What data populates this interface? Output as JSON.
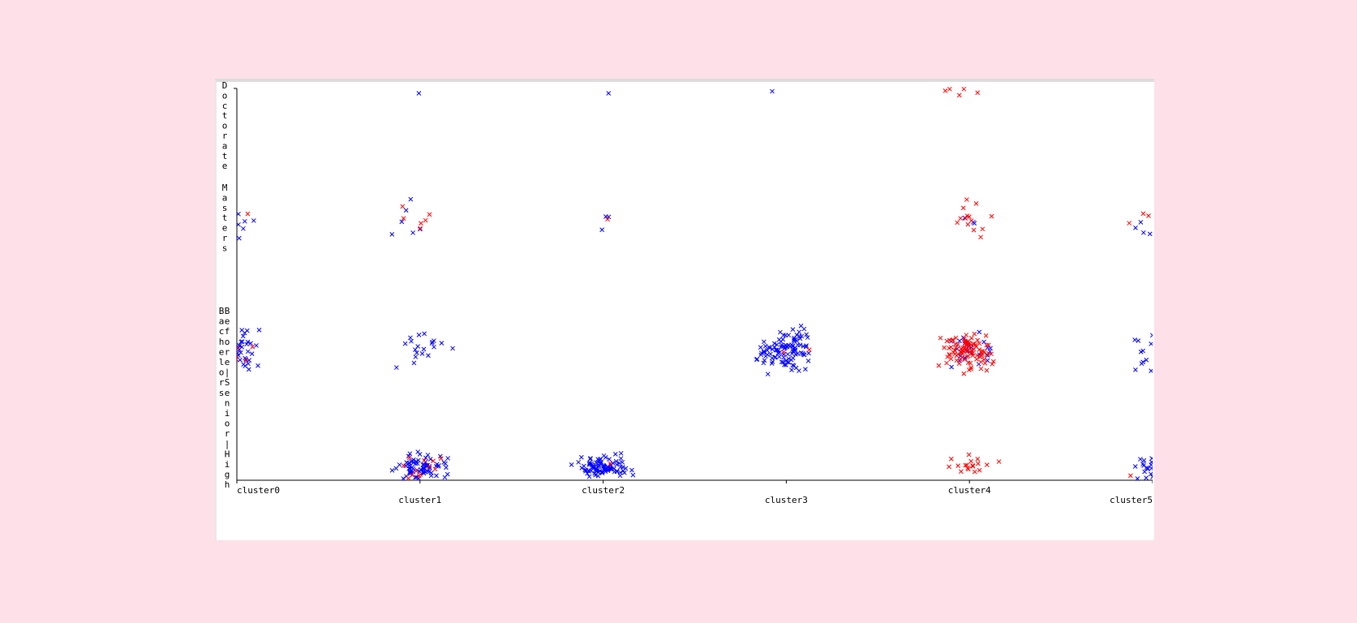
{
  "chart_data": {
    "type": "scatter",
    "jitter": true,
    "title": "",
    "xlabel": "",
    "ylabel": "",
    "x_categories": [
      "cluster0",
      "cluster1",
      "cluster2",
      "cluster3",
      "cluster4",
      "cluster5"
    ],
    "y_categories": [
      "High",
      "Bachelors|Senior|High",
      "Masters",
      "Doctorate"
    ],
    "y_tick_labels": [
      "D o c t o r a t e",
      "M a s t e r s",
      "B a c h e l o r s",
      "B e f o r e | S e n i o r | H i g h"
    ],
    "colors": {
      "class_a": "#0000ff",
      "class_b": "#ff0000"
    },
    "marker": "x",
    "legend": "none",
    "grid": false,
    "series": [
      {
        "color": "#0000ff",
        "counts": {
          "cluster0": {
            "Doctorate": 0,
            "Masters": 7,
            "Bachelors": 55,
            "High": 0
          },
          "cluster1": {
            "Doctorate": 1,
            "Masters": 6,
            "Bachelors": 20,
            "High": 75
          },
          "cluster2": {
            "Doctorate": 1,
            "Masters": 3,
            "Bachelors": 0,
            "High": 90
          },
          "cluster3": {
            "Doctorate": 1,
            "Masters": 0,
            "Bachelors": 110,
            "High": 0
          },
          "cluster4": {
            "Doctorate": 0,
            "Masters": 3,
            "Bachelors": 25,
            "High": 0
          },
          "cluster5": {
            "Doctorate": 0,
            "Masters": 5,
            "Bachelors": 30,
            "High": 40
          }
        }
      },
      {
        "color": "#ff0000",
        "counts": {
          "cluster0": {
            "Doctorate": 0,
            "Masters": 4,
            "Bachelors": 8,
            "High": 0
          },
          "cluster1": {
            "Doctorate": 0,
            "Masters": 6,
            "Bachelors": 0,
            "High": 12
          },
          "cluster2": {
            "Doctorate": 0,
            "Masters": 1,
            "Bachelors": 0,
            "High": 1
          },
          "cluster3": {
            "Doctorate": 0,
            "Masters": 0,
            "Bachelors": 2,
            "High": 0
          },
          "cluster4": {
            "Doctorate": 5,
            "Masters": 14,
            "Bachelors": 95,
            "High": 18
          },
          "cluster5": {
            "Doctorate": 0,
            "Masters": 3,
            "Bachelors": 0,
            "High": 3
          }
        }
      }
    ]
  }
}
